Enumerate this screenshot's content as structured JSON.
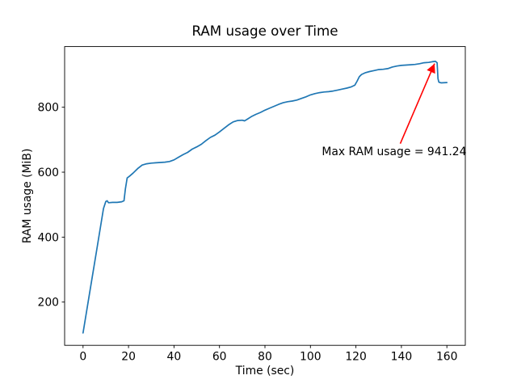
{
  "chart_data": {
    "type": "line",
    "title": "RAM usage over Time",
    "xlabel": "Time (sec)",
    "ylabel": "RAM usage (MiB)",
    "x_ticks": [
      0,
      20,
      40,
      60,
      80,
      100,
      120,
      140,
      160
    ],
    "y_ticks": [
      200,
      400,
      600,
      800
    ],
    "xlim": [
      -8.1,
      168.1
    ],
    "ylim": [
      66.8,
      986.9
    ],
    "grid": false,
    "legend": "none",
    "line_color": "#1f77b4",
    "axis_color": "#000000",
    "series": [
      {
        "name": "RAM usage",
        "points": [
          [
            0,
            105
          ],
          [
            3,
            232
          ],
          [
            6,
            360
          ],
          [
            9,
            488
          ],
          [
            10,
            510
          ],
          [
            10.6,
            512
          ],
          [
            11.2,
            506
          ],
          [
            13,
            507
          ],
          [
            15,
            507
          ],
          [
            17,
            509
          ],
          [
            18,
            512
          ],
          [
            18.6,
            548
          ],
          [
            19.4,
            582
          ],
          [
            20.5,
            588
          ],
          [
            22,
            597
          ],
          [
            24,
            611
          ],
          [
            26,
            622
          ],
          [
            28,
            626
          ],
          [
            30,
            628
          ],
          [
            32,
            629
          ],
          [
            34,
            630
          ],
          [
            36,
            631
          ],
          [
            38,
            633
          ],
          [
            40,
            638
          ],
          [
            42,
            646
          ],
          [
            44,
            654
          ],
          [
            46,
            661
          ],
          [
            48,
            671
          ],
          [
            50,
            678
          ],
          [
            52,
            686
          ],
          [
            54,
            697
          ],
          [
            56,
            707
          ],
          [
            58,
            714
          ],
          [
            60,
            724
          ],
          [
            62,
            735
          ],
          [
            64,
            746
          ],
          [
            66,
            755
          ],
          [
            68,
            759
          ],
          [
            70,
            760
          ],
          [
            71,
            758
          ],
          [
            72,
            762
          ],
          [
            74,
            771
          ],
          [
            76,
            778
          ],
          [
            78,
            784
          ],
          [
            80,
            791
          ],
          [
            82,
            797
          ],
          [
            84,
            803
          ],
          [
            86,
            809
          ],
          [
            88,
            814
          ],
          [
            90,
            817
          ],
          [
            92,
            819
          ],
          [
            94,
            822
          ],
          [
            96,
            827
          ],
          [
            98,
            832
          ],
          [
            100,
            838
          ],
          [
            102,
            842
          ],
          [
            104,
            845
          ],
          [
            106,
            847
          ],
          [
            108,
            848
          ],
          [
            110,
            850
          ],
          [
            112,
            853
          ],
          [
            114,
            856
          ],
          [
            116,
            859
          ],
          [
            118,
            863
          ],
          [
            119.5,
            868
          ],
          [
            120.5,
            880
          ],
          [
            121.5,
            894
          ],
          [
            122.5,
            901
          ],
          [
            124,
            906
          ],
          [
            126,
            910
          ],
          [
            128,
            913
          ],
          [
            130,
            916
          ],
          [
            132,
            917
          ],
          [
            134,
            919
          ],
          [
            136,
            924
          ],
          [
            138,
            927
          ],
          [
            140,
            929
          ],
          [
            142,
            930
          ],
          [
            144,
            931
          ],
          [
            146,
            932
          ],
          [
            148,
            934
          ],
          [
            150,
            937
          ],
          [
            152,
            938
          ],
          [
            153.5,
            940
          ],
          [
            155,
            941.24
          ],
          [
            155.7,
            937
          ],
          [
            156.1,
            888
          ],
          [
            156.5,
            877
          ],
          [
            157.5,
            875
          ],
          [
            160,
            876
          ]
        ]
      }
    ],
    "annotation": {
      "text": "Max RAM usage = 941.24",
      "color": "#ff0000",
      "xy": [
        155,
        941.24
      ],
      "text_xy": [
        105,
        652
      ],
      "arrow_tail_xy": [
        139.5,
        688
      ]
    }
  }
}
